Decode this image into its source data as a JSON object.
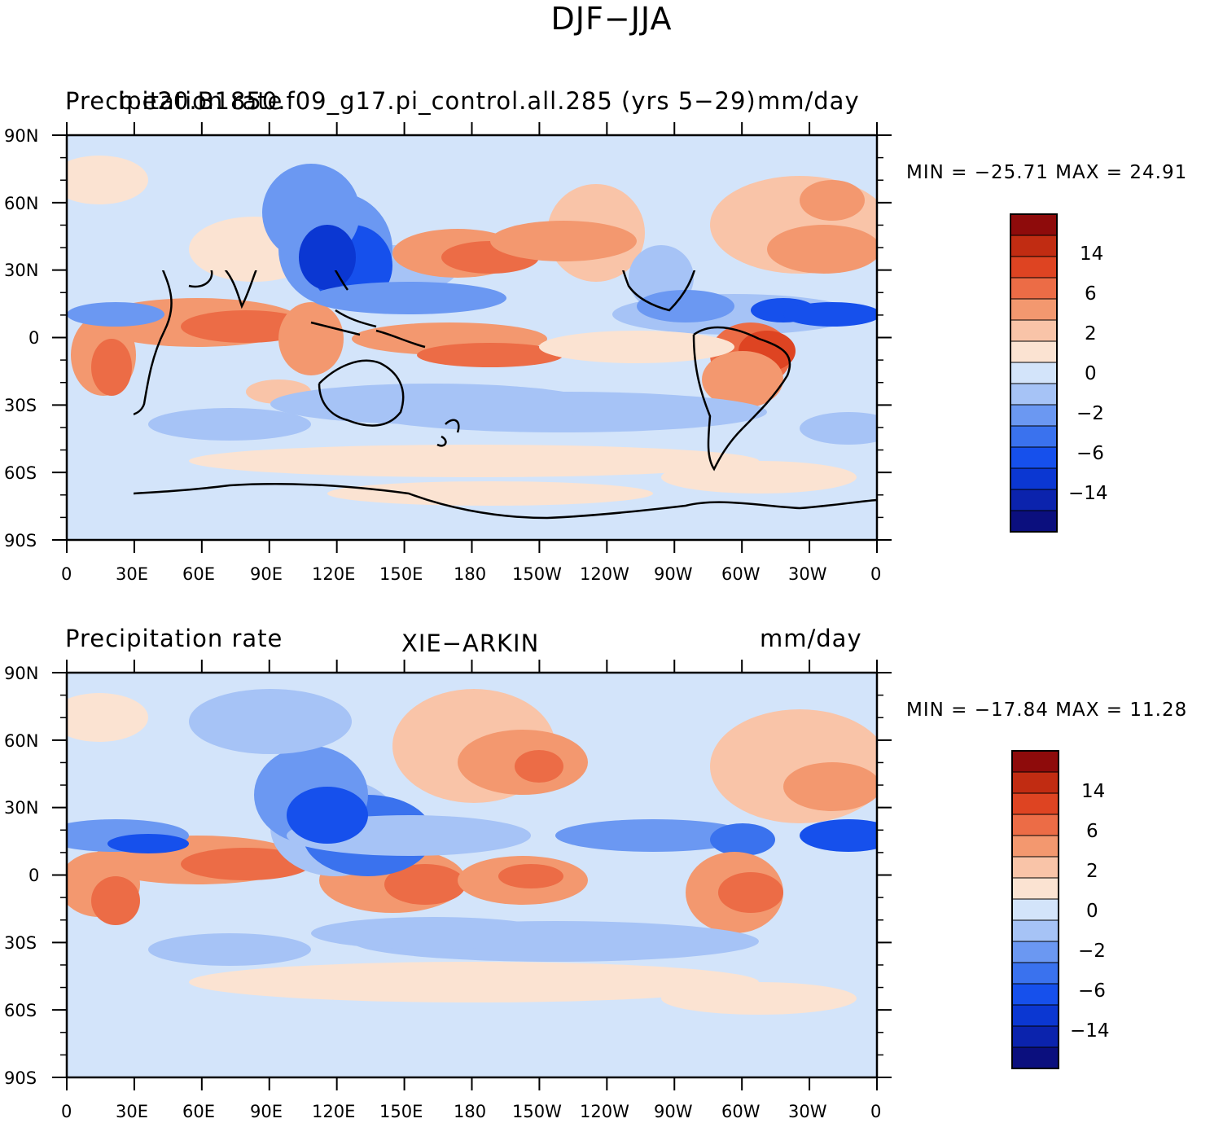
{
  "figure_title": "DJF−JJA",
  "lat_labels": [
    "90N",
    "60N",
    "30N",
    "0",
    "30S",
    "60S",
    "90S"
  ],
  "lon_labels": [
    "0",
    "30E",
    "60E",
    "90E",
    "120E",
    "150E",
    "180",
    "150W",
    "120W",
    "90W",
    "60W",
    "30W",
    "0"
  ],
  "colors": {
    "levels": [
      "#0b0f7e",
      "#0b23ad",
      "#0b37d2",
      "#1650ec",
      "#3a72ee",
      "#6b98f2",
      "#a6c3f6",
      "#d3e4fa",
      "#fbe3d2",
      "#f9c4a8",
      "#f3986f",
      "#ec6c46",
      "#de4422",
      "#c12c12",
      "#8e0b0b"
    ],
    "coast": "#000000"
  },
  "panels": [
    {
      "left_title": "Precipitation rate",
      "center_title": "b.e20.B1850.f09_g17.pi_control.all.285 (yrs 5−29)",
      "right_title": "mm/day",
      "min_max": "MIN = −25.71  MAX =   24.91",
      "colorbar_labels": [
        "14",
        "6",
        "2",
        "0",
        "−2",
        "−6",
        "−14"
      ]
    },
    {
      "left_title": "Precipitation rate",
      "center_title": "XIE−ARKIN",
      "right_title": "mm/day",
      "min_max": "MIN = −17.84  MAX =   11.28",
      "colorbar_labels": [
        "14",
        "6",
        "2",
        "0",
        "−2",
        "−6",
        "−14"
      ]
    }
  ]
}
